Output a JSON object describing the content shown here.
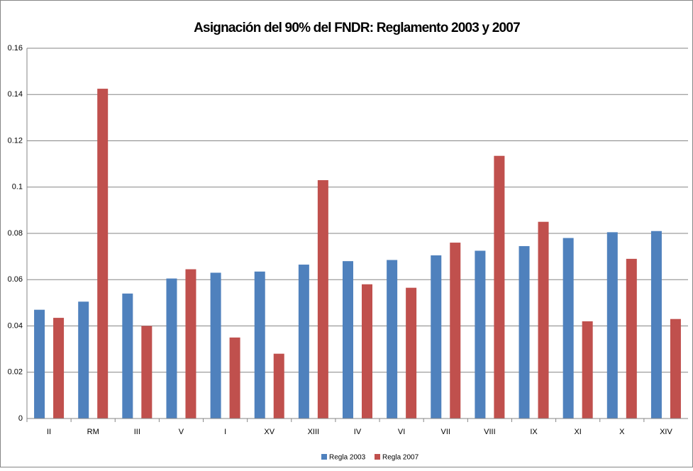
{
  "chart_data": {
    "type": "bar",
    "title": "Asignación del 90% del FNDR: Reglamento 2003 y 2007",
    "categories": [
      "II",
      "RM",
      "III",
      "V",
      "I",
      "XV",
      "XIII",
      "IV",
      "VI",
      "VII",
      "VIII",
      "IX",
      "XI",
      "X",
      "XIV"
    ],
    "series": [
      {
        "name": "Regla 2003",
        "color": "#4f81bd",
        "values": [
          0.047,
          0.0505,
          0.054,
          0.0605,
          0.063,
          0.0635,
          0.0665,
          0.068,
          0.0685,
          0.0705,
          0.0725,
          0.0745,
          0.078,
          0.0805,
          0.081
        ]
      },
      {
        "name": "Regla 2007",
        "color": "#c0504d",
        "values": [
          0.0435,
          0.1425,
          0.04,
          0.0645,
          0.035,
          0.028,
          0.103,
          0.058,
          0.0565,
          0.076,
          0.1135,
          0.085,
          0.042,
          0.069,
          0.043
        ]
      }
    ],
    "ylim": [
      0,
      0.16
    ],
    "yticks": [
      0,
      0.02,
      0.04,
      0.06,
      0.08,
      0.1,
      0.12,
      0.14,
      0.16
    ],
    "grid": true,
    "legend": "bottom"
  }
}
